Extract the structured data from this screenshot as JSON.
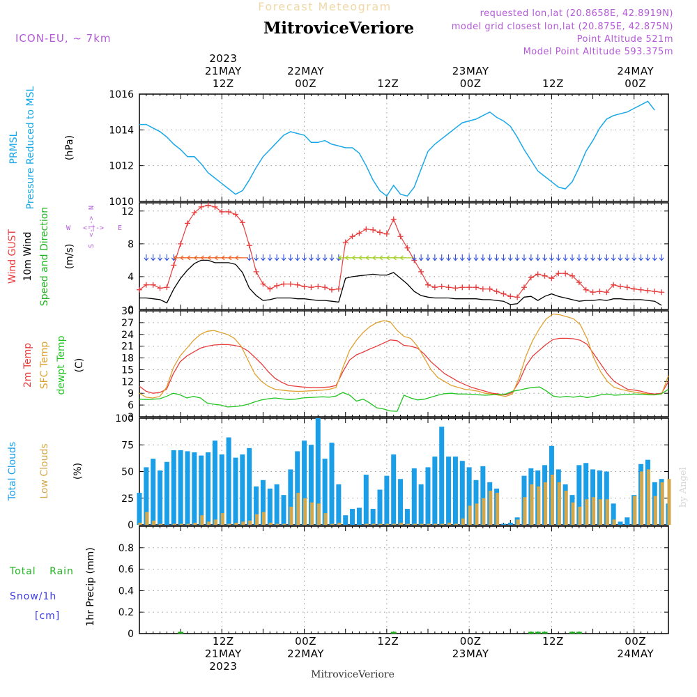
{
  "header": {
    "product_title": "Forecast Meteogram",
    "location": "MitroviceVeriore",
    "model": "ICON-EU, ~ 7km",
    "requested": "requested lon,lat (20.8658E, 42.8919N)",
    "closest": "model grid closest lon,lat (20.875E, 42.875N)",
    "point_alt": "Point Altitude 521m",
    "model_alt": "Model Point Altitude 593.375m",
    "credit": "by Angel",
    "footer_location": "MitroviceVeriore"
  },
  "time_axis": {
    "top": [
      {
        "hour": 12,
        "lines": [
          "2023",
          "21MAY",
          "12Z"
        ]
      },
      {
        "hour": 24,
        "lines": [
          "22MAY",
          "00Z"
        ]
      },
      {
        "hour": 36,
        "lines": [
          "12Z"
        ]
      },
      {
        "hour": 48,
        "lines": [
          "23MAY",
          "00Z"
        ]
      },
      {
        "hour": 60,
        "lines": [
          "12Z"
        ]
      },
      {
        "hour": 72,
        "lines": [
          "24MAY",
          "00Z"
        ]
      }
    ],
    "bottom": [
      {
        "hour": 12,
        "lines": [
          "12Z",
          "21MAY",
          "2023"
        ]
      },
      {
        "hour": 24,
        "lines": [
          "00Z",
          "22MAY"
        ]
      },
      {
        "hour": 36,
        "lines": [
          "12Z"
        ]
      },
      {
        "hour": 48,
        "lines": [
          "00Z",
          "23MAY"
        ]
      },
      {
        "hour": 60,
        "lines": [
          "12Z"
        ]
      },
      {
        "hour": 72,
        "lines": [
          "00Z",
          "24MAY"
        ]
      }
    ]
  },
  "colors": {
    "pressure": "#1aa8e8",
    "gust": "#e83c3c",
    "wind": "#000000",
    "dir_label": "#22b422",
    "temp": "#e83c3c",
    "sfc": "#e0a030",
    "dewpt": "#22c422",
    "total_clouds": "#1a9ee8",
    "low_clouds": "#d4a84a",
    "rain": "#22b422",
    "snow": "#3c3ce8",
    "purple": "#b45ad8"
  },
  "chart_data": [
    {
      "type": "line",
      "name": "pressure",
      "label_lines": [
        "PRMSL",
        "Pressure Reduced to MSL"
      ],
      "unit": "(hPa)",
      "x_start_hour": 0,
      "x_step_hours": 1,
      "ylim": [
        1010,
        1016
      ],
      "yticks": [
        1010,
        1012,
        1014,
        1016
      ],
      "series": [
        {
          "name": "PRMSL",
          "values": [
            1014.3,
            1014.3,
            1014.1,
            1013.9,
            1013.6,
            1013.2,
            1012.9,
            1012.5,
            1012.5,
            1012.1,
            1011.6,
            1011.3,
            1011.0,
            1010.7,
            1010.4,
            1010.6,
            1011.2,
            1011.9,
            1012.5,
            1012.9,
            1013.3,
            1013.7,
            1013.9,
            1013.8,
            1013.7,
            1013.3,
            1013.3,
            1013.4,
            1013.2,
            1013.1,
            1013.0,
            1013.0,
            1012.7,
            1012.0,
            1011.2,
            1010.6,
            1010.3,
            1010.9,
            1010.4,
            1010.3,
            1010.8,
            1011.8,
            1012.8,
            1013.2,
            1013.5,
            1013.8,
            1014.1,
            1014.4,
            1014.5,
            1014.6,
            1014.8,
            1015.0,
            1014.7,
            1014.5,
            1014.2,
            1013.6,
            1012.9,
            1012.3,
            1011.7,
            1011.4,
            1011.1,
            1010.8,
            1010.7,
            1011.1,
            1011.9,
            1012.8,
            1013.4,
            1014.1,
            1014.6,
            1014.8,
            1014.9,
            1015.0,
            1015.2,
            1015.4,
            1015.6,
            1015.1
          ]
        }
      ]
    },
    {
      "type": "line",
      "name": "wind",
      "label_gust": "Wind GUST",
      "label_wind": "10m Wind",
      "label_dir": "Speed and Direction",
      "unit": "(m/s)",
      "compass": {
        "n": "N",
        "s": "S",
        "w": "W",
        "e": "E",
        "v": "<-|->",
        "h": "<-|->"
      },
      "x_start_hour": 0,
      "x_step_hours": 1,
      "ylim": [
        0,
        13
      ],
      "yticks": [
        0,
        4,
        8,
        12
      ],
      "series": [
        {
          "name": "Wind GUST",
          "values": [
            2.4,
            3.0,
            3.0,
            2.6,
            2.7,
            5.4,
            8.0,
            10.5,
            11.8,
            12.5,
            12.7,
            12.5,
            11.9,
            11.9,
            11.6,
            10.6,
            7.8,
            4.6,
            3.1,
            2.5,
            2.9,
            3.1,
            3.1,
            3.0,
            2.8,
            2.7,
            2.8,
            2.7,
            2.4,
            2.5,
            8.2,
            8.9,
            9.3,
            9.8,
            9.7,
            9.4,
            9.2,
            11.0,
            8.9,
            7.5,
            6.0,
            4.6,
            3.0,
            2.7,
            2.8,
            2.7,
            2.6,
            2.7,
            2.7,
            2.7,
            2.5,
            2.5,
            2.2,
            1.9,
            1.6,
            1.5,
            2.7,
            3.9,
            4.3,
            4.1,
            3.8,
            4.4,
            4.4,
            4.1,
            3.3,
            2.4,
            2.1,
            2.2,
            2.1,
            3.0,
            2.8,
            2.7,
            2.5,
            2.4,
            2.3,
            2.2,
            2.1
          ]
        },
        {
          "name": "10m Wind",
          "values": [
            1.4,
            1.4,
            1.3,
            1.2,
            0.8,
            2.5,
            3.8,
            4.8,
            5.6,
            6.0,
            6.0,
            5.7,
            5.7,
            5.7,
            5.5,
            4.5,
            2.6,
            1.7,
            1.1,
            1.2,
            1.4,
            1.4,
            1.4,
            1.3,
            1.3,
            1.2,
            1.1,
            1.1,
            1.0,
            0.9,
            3.8,
            4.0,
            4.1,
            4.2,
            4.3,
            4.2,
            4.2,
            4.5,
            3.8,
            3.1,
            2.2,
            1.7,
            1.5,
            1.4,
            1.4,
            1.4,
            1.3,
            1.3,
            1.3,
            1.3,
            1.2,
            1.2,
            1.1,
            1.0,
            0.6,
            0.7,
            1.5,
            1.6,
            1.1,
            1.6,
            1.9,
            1.6,
            1.4,
            1.2,
            1.0,
            1.1,
            1.1,
            1.2,
            1.1,
            1.3,
            1.3,
            1.2,
            1.2,
            1.2,
            1.1,
            1.0,
            0.5
          ]
        }
      ]
    },
    {
      "type": "line",
      "name": "temperature",
      "label_lines": [
        "2m Temp",
        "SFC Temp",
        "dewpt Temp"
      ],
      "unit": "(C)",
      "x_start_hour": 0,
      "x_step_hours": 1,
      "ylim": [
        3,
        30
      ],
      "yticks": [
        3,
        6,
        9,
        12,
        15,
        18,
        21,
        24,
        27,
        30
      ],
      "series": [
        {
          "name": "2m Temp",
          "values": [
            10.8,
            9.5,
            9.0,
            9.2,
            10.0,
            14.0,
            17.0,
            18.5,
            19.5,
            20.5,
            21.0,
            21.3,
            21.4,
            21.4,
            21.2,
            20.8,
            19.8,
            18.2,
            16.5,
            14.5,
            12.8,
            11.8,
            11.0,
            10.8,
            10.6,
            10.5,
            10.4,
            10.5,
            10.6,
            11.0,
            14.5,
            17.5,
            18.8,
            19.5,
            20.3,
            21.0,
            21.8,
            22.6,
            22.4,
            21.2,
            21.0,
            20.5,
            19.0,
            17.0,
            15.5,
            14.0,
            13.0,
            12.0,
            11.2,
            10.5,
            10.0,
            9.5,
            9.0,
            8.8,
            8.6,
            9.2,
            12.0,
            16.0,
            18.5,
            20.0,
            21.5,
            22.7,
            23.0,
            23.0,
            22.9,
            22.5,
            21.5,
            19.0,
            16.5,
            14.0,
            12.0,
            11.0,
            10.0,
            9.8,
            9.5,
            9.0,
            8.8,
            9.0,
            12.0
          ]
        },
        {
          "name": "SFC Temp",
          "values": [
            9.0,
            8.0,
            7.8,
            8.2,
            10.5,
            15.5,
            18.5,
            20.5,
            22.5,
            24.0,
            24.8,
            25.0,
            24.5,
            24.0,
            23.0,
            21.0,
            17.5,
            14.0,
            12.0,
            10.8,
            10.0,
            9.8,
            9.6,
            9.5,
            9.5,
            9.6,
            9.7,
            9.8,
            10.0,
            10.5,
            15.5,
            20.0,
            22.5,
            24.5,
            26.0,
            27.0,
            27.5,
            27.2,
            25.0,
            23.5,
            23.0,
            21.0,
            18.0,
            15.0,
            13.0,
            12.0,
            11.0,
            10.5,
            10.0,
            9.8,
            9.5,
            9.0,
            8.8,
            8.5,
            8.2,
            8.8,
            13.0,
            18.5,
            22.5,
            25.5,
            28.0,
            29.2,
            29.0,
            28.5,
            28.0,
            26.5,
            23.0,
            18.0,
            14.5,
            12.0,
            10.5,
            10.0,
            9.6,
            9.3,
            9.0,
            8.8,
            8.6,
            8.8,
            13.5
          ]
        },
        {
          "name": "dewpt Temp",
          "values": [
            7.5,
            7.4,
            7.5,
            7.6,
            8.2,
            9.0,
            8.6,
            7.8,
            8.2,
            7.8,
            6.5,
            6.2,
            6.0,
            5.5,
            5.6,
            5.8,
            6.2,
            6.8,
            7.3,
            7.6,
            7.8,
            7.6,
            7.4,
            7.5,
            7.8,
            7.9,
            8.0,
            8.1,
            8.0,
            8.3,
            9.2,
            8.5,
            7.0,
            7.5,
            6.5,
            5.3,
            5.0,
            4.5,
            4.4,
            8.5,
            7.8,
            7.3,
            7.5,
            8.0,
            8.5,
            8.9,
            9.0,
            8.8,
            8.8,
            8.7,
            8.6,
            8.5,
            8.6,
            8.7,
            8.8,
            9.5,
            9.8,
            10.2,
            10.5,
            10.6,
            9.6,
            8.3,
            8.0,
            8.2,
            8.0,
            8.3,
            7.9,
            8.2,
            8.6,
            8.8,
            8.5,
            8.6,
            8.7,
            8.8,
            8.7,
            8.6,
            8.6,
            8.9,
            10.0
          ]
        }
      ]
    },
    {
      "type": "bar",
      "name": "clouds",
      "label_lines": [
        "Total Clouds",
        "Low Clouds"
      ],
      "unit": "(%)",
      "x_start_hour": 0,
      "x_step_hours": 1,
      "ylim": [
        0,
        100
      ],
      "yticks": [
        0,
        25,
        50,
        75,
        100
      ],
      "series": [
        {
          "name": "Total Clouds",
          "values": [
            30,
            54,
            62,
            51,
            59,
            70,
            70,
            69,
            68,
            65,
            68,
            79,
            66,
            82,
            63,
            66,
            72,
            36,
            42,
            34,
            38,
            28,
            52,
            69,
            79,
            75,
            100,
            62,
            77,
            38,
            9,
            15,
            16,
            47,
            15,
            33,
            46,
            66,
            43,
            15,
            53,
            38,
            54,
            64,
            92,
            64,
            64,
            60,
            54,
            42,
            55,
            40,
            34,
            1,
            2,
            7,
            46,
            53,
            51,
            56,
            74,
            52,
            38,
            28,
            56,
            58,
            52,
            51,
            50,
            20,
            3,
            7,
            28,
            57,
            61,
            40,
            43,
            20
          ]
        },
        {
          "name": "Low Clouds",
          "values": [
            2,
            12,
            4,
            1,
            0,
            1,
            1,
            1,
            2,
            9,
            3,
            5,
            11,
            1,
            2,
            3,
            4,
            10,
            12,
            2,
            1,
            1,
            17,
            30,
            25,
            21,
            20,
            11,
            1,
            2,
            0,
            0,
            0,
            1,
            1,
            1,
            1,
            1,
            2,
            1,
            1,
            1,
            1,
            1,
            1,
            2,
            1,
            6,
            18,
            20,
            25,
            32,
            30,
            0,
            0,
            5,
            26,
            38,
            36,
            40,
            47,
            40,
            32,
            21,
            17,
            24,
            26,
            24,
            24,
            5,
            0,
            0,
            27,
            50,
            52,
            27,
            40,
            43
          ]
        }
      ]
    },
    {
      "type": "bar",
      "name": "precipitation",
      "label_rain": "Total Rain",
      "label_snow": "Snow/1h",
      "label_snow_unit": "[cm]",
      "unit": "1hr Precip (mm)",
      "x_start_hour": 0,
      "x_step_hours": 1,
      "ylim": [
        0,
        1
      ],
      "yticks": [
        0,
        0.2,
        0.4,
        0.6,
        0.8
      ],
      "series": [
        {
          "name": "Total Rain",
          "values": [
            0,
            0,
            0,
            0,
            0,
            0,
            0.01,
            0,
            0,
            0,
            0,
            0,
            0,
            0,
            0,
            0,
            0,
            0,
            0,
            0,
            0,
            0,
            0,
            0,
            0,
            0,
            0,
            0,
            0,
            0,
            0,
            0,
            0,
            0,
            0,
            0,
            0,
            0.01,
            0,
            0,
            0,
            0,
            0,
            0,
            0,
            0,
            0,
            0,
            0,
            0,
            0,
            0,
            0,
            0,
            0,
            0,
            0,
            0.01,
            0.01,
            0.01,
            0,
            0,
            0,
            0.01,
            0.01,
            0,
            0,
            0,
            0,
            0,
            0,
            0,
            0,
            0,
            0,
            0,
            0,
            0
          ]
        }
      ]
    }
  ]
}
